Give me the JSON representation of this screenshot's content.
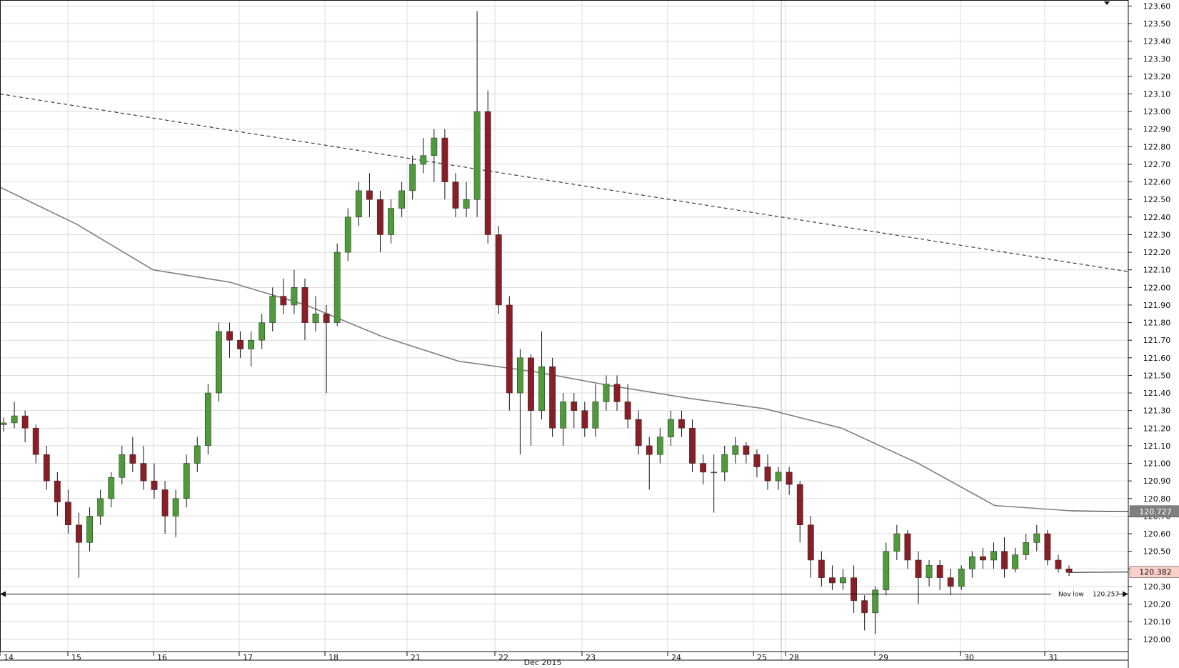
{
  "chart_data": {
    "type": "candlestick",
    "y_axis": {
      "range": [
        119.93,
        123.63
      ],
      "ticks": [
        "123.60",
        "123.50",
        "123.40",
        "123.30",
        "123.20",
        "123.10",
        "123.00",
        "122.90",
        "122.80",
        "122.70",
        "122.60",
        "122.50",
        "122.40",
        "122.30",
        "122.20",
        "122.10",
        "122.00",
        "121.90",
        "121.80",
        "121.70",
        "121.60",
        "121.50",
        "121.40",
        "121.30",
        "121.20",
        "121.10",
        "121.00",
        "120.90",
        "120.80",
        "120.70",
        "120.60",
        "120.50",
        "120.40",
        "120.30",
        "120.20",
        "120.10",
        "120.00"
      ],
      "position": "right",
      "grid": true
    },
    "x_axis": {
      "day_labels": [
        "14",
        "15",
        "16",
        "17",
        "18",
        "21",
        "22",
        "23",
        "24",
        "25",
        "28",
        "29",
        "30",
        "31"
      ],
      "month_label": "Dec 2015",
      "grid": true
    },
    "candles": [
      [
        121.22,
        121.26,
        121.18,
        121.23
      ],
      [
        121.23,
        121.35,
        121.2,
        121.27
      ],
      [
        121.27,
        121.3,
        121.12,
        121.2
      ],
      [
        121.2,
        121.22,
        121.0,
        121.05
      ],
      [
        121.05,
        121.1,
        120.85,
        120.9
      ],
      [
        120.9,
        120.95,
        120.7,
        120.78
      ],
      [
        120.78,
        120.85,
        120.6,
        120.65
      ],
      [
        120.65,
        120.72,
        120.35,
        120.55
      ],
      [
        120.55,
        120.75,
        120.5,
        120.7
      ],
      [
        120.7,
        120.85,
        120.65,
        120.8
      ],
      [
        120.8,
        120.95,
        120.75,
        120.92
      ],
      [
        120.92,
        121.1,
        120.88,
        121.05
      ],
      [
        121.05,
        121.15,
        120.95,
        121.0
      ],
      [
        121.0,
        121.1,
        120.85,
        120.9
      ],
      [
        120.9,
        121.0,
        120.8,
        120.85
      ],
      [
        120.85,
        120.9,
        120.6,
        120.7
      ],
      [
        120.7,
        120.85,
        120.58,
        120.8
      ],
      [
        120.8,
        121.05,
        120.75,
        121.0
      ],
      [
        121.0,
        121.15,
        120.95,
        121.1
      ],
      [
        121.1,
        121.45,
        121.05,
        121.4
      ],
      [
        121.4,
        121.8,
        121.35,
        121.75
      ],
      [
        121.75,
        121.8,
        121.6,
        121.7
      ],
      [
        121.7,
        121.75,
        121.6,
        121.65
      ],
      [
        121.65,
        121.75,
        121.55,
        121.7
      ],
      [
        121.7,
        121.85,
        121.65,
        121.8
      ],
      [
        121.8,
        122.0,
        121.75,
        121.95
      ],
      [
        121.95,
        122.05,
        121.85,
        121.9
      ],
      [
        121.9,
        122.1,
        121.85,
        122.0
      ],
      [
        122.0,
        122.05,
        121.7,
        121.8
      ],
      [
        121.8,
        121.95,
        121.75,
        121.85
      ],
      [
        121.85,
        121.9,
        121.4,
        121.8
      ],
      [
        121.8,
        122.25,
        121.78,
        122.2
      ],
      [
        122.2,
        122.45,
        122.15,
        122.4
      ],
      [
        122.4,
        122.6,
        122.35,
        122.55
      ],
      [
        122.55,
        122.65,
        122.4,
        122.5
      ],
      [
        122.5,
        122.55,
        122.2,
        122.3
      ],
      [
        122.3,
        122.5,
        122.25,
        122.45
      ],
      [
        122.45,
        122.6,
        122.4,
        122.55
      ],
      [
        122.55,
        122.75,
        122.5,
        122.7
      ],
      [
        122.7,
        122.85,
        122.65,
        122.75
      ],
      [
        122.75,
        122.9,
        122.6,
        122.85
      ],
      [
        122.85,
        122.9,
        122.5,
        122.6
      ],
      [
        122.6,
        122.65,
        122.4,
        122.45
      ],
      [
        122.45,
        122.6,
        122.4,
        122.5
      ],
      [
        122.5,
        123.57,
        122.4,
        123.0
      ],
      [
        123.0,
        123.12,
        122.25,
        122.3
      ],
      [
        122.3,
        122.35,
        121.85,
        121.9
      ],
      [
        121.9,
        121.95,
        121.3,
        121.4
      ],
      [
        121.4,
        121.65,
        121.05,
        121.6
      ],
      [
        121.6,
        121.62,
        121.1,
        121.3
      ],
      [
        121.3,
        121.75,
        121.25,
        121.55
      ],
      [
        121.55,
        121.6,
        121.15,
        121.2
      ],
      [
        121.2,
        121.4,
        121.1,
        121.35
      ],
      [
        121.35,
        121.4,
        121.2,
        121.3
      ],
      [
        121.3,
        121.35,
        121.15,
        121.2
      ],
      [
        121.2,
        121.45,
        121.15,
        121.35
      ],
      [
        121.35,
        121.5,
        121.3,
        121.45
      ],
      [
        121.45,
        121.5,
        121.3,
        121.35
      ],
      [
        121.35,
        121.45,
        121.2,
        121.25
      ],
      [
        121.25,
        121.3,
        121.05,
        121.1
      ],
      [
        121.1,
        121.15,
        120.85,
        121.05
      ],
      [
        121.05,
        121.2,
        121.0,
        121.15
      ],
      [
        121.15,
        121.3,
        121.1,
        121.25
      ],
      [
        121.25,
        121.3,
        121.15,
        121.2
      ],
      [
        121.2,
        121.25,
        120.95,
        121.0
      ],
      [
        121.0,
        121.05,
        120.88,
        120.95
      ],
      [
        120.95,
        121.05,
        120.72,
        120.95
      ],
      [
        120.95,
        121.1,
        120.9,
        121.05
      ],
      [
        121.05,
        121.15,
        121.0,
        121.1
      ],
      [
        121.1,
        121.12,
        121.0,
        121.05
      ],
      [
        121.05,
        121.08,
        120.92,
        120.98
      ],
      [
        120.98,
        121.05,
        120.85,
        120.9
      ],
      [
        120.9,
        120.98,
        120.85,
        120.95
      ],
      [
        120.95,
        120.98,
        120.82,
        120.88
      ],
      [
        120.88,
        120.9,
        120.55,
        120.65
      ],
      [
        120.65,
        120.7,
        120.35,
        120.45
      ],
      [
        120.45,
        120.5,
        120.3,
        120.35
      ],
      [
        120.35,
        120.42,
        120.28,
        120.32
      ],
      [
        120.32,
        120.4,
        120.28,
        120.35
      ],
      [
        120.35,
        120.42,
        120.15,
        120.22
      ],
      [
        120.22,
        120.25,
        120.05,
        120.15
      ],
      [
        120.15,
        120.3,
        120.03,
        120.28
      ],
      [
        120.28,
        120.55,
        120.25,
        120.5
      ],
      [
        120.5,
        120.65,
        120.45,
        120.6
      ],
      [
        120.6,
        120.62,
        120.4,
        120.45
      ],
      [
        120.45,
        120.5,
        120.2,
        120.35
      ],
      [
        120.35,
        120.45,
        120.3,
        120.42
      ],
      [
        120.42,
        120.45,
        120.28,
        120.35
      ],
      [
        120.35,
        120.4,
        120.25,
        120.3
      ],
      [
        120.3,
        120.42,
        120.28,
        120.4
      ],
      [
        120.4,
        120.5,
        120.35,
        120.47
      ],
      [
        120.47,
        120.52,
        120.4,
        120.45
      ],
      [
        120.45,
        120.55,
        120.4,
        120.5
      ],
      [
        120.5,
        120.58,
        120.35,
        120.4
      ],
      [
        120.4,
        120.52,
        120.38,
        120.48
      ],
      [
        120.48,
        120.6,
        120.45,
        120.55
      ],
      [
        120.55,
        120.65,
        120.5,
        120.6
      ],
      [
        120.6,
        120.62,
        120.42,
        120.45
      ],
      [
        120.45,
        120.48,
        120.38,
        120.4
      ],
      [
        120.4,
        120.42,
        120.36,
        120.38
      ]
    ],
    "series": [
      {
        "name": "",
        "style": "solid",
        "color": "#7f7f7f",
        "values": [
          122.57,
          122.36,
          122.1,
          122.03,
          121.9,
          121.72,
          121.58,
          121.52,
          121.44,
          121.37,
          121.31,
          121.2,
          121.0,
          120.76,
          120.73
        ]
      },
      {
        "name": "",
        "style": "dashed",
        "color": "#111111",
        "values": [
          123.1,
          122.09
        ]
      },
      {
        "name": "",
        "style": "solid",
        "color": "#111111",
        "values": [
          120.257,
          120.257
        ]
      }
    ],
    "annotations": [
      {
        "text": "Nov low",
        "value": "120.257"
      }
    ],
    "price_tags": [
      {
        "value": "120.727",
        "bg": "#808080",
        "fg": "#ffffff"
      },
      {
        "value": "120.382",
        "bg": "#f9cfc8",
        "fg": "#111111"
      }
    ],
    "colors": {
      "up": "#4f9a3a",
      "down": "#8a1e26",
      "wick": "#111111",
      "grid": "#dcdcdc"
    }
  }
}
